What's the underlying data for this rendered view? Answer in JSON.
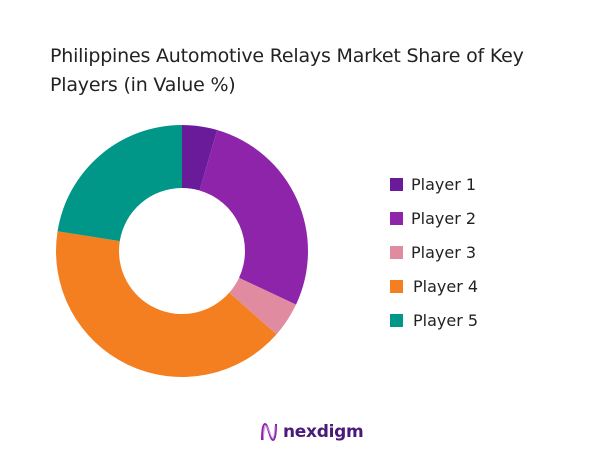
{
  "title": "Philippines Automotive Relays Market Share of Key Players (in Value %)",
  "logo": {
    "text": "nexdigm",
    "icon": "nexdigm-wave-logo-icon",
    "color": "#6a1b9a"
  },
  "chart_data": {
    "type": "pie",
    "variant": "donut",
    "title": "Philippines Automotive Relays Market Share of Key Players (in Value %)",
    "categories": [
      "Player 1",
      "Player 2",
      "Player 3",
      "Player 4",
      "Player 5"
    ],
    "values": [
      4.5,
      27.5,
      4.5,
      41,
      22.5
    ],
    "colors": [
      "#6a1b9a",
      "#8e24aa",
      "#e08ba0",
      "#f47f20",
      "#009688"
    ],
    "unit": "%",
    "legend_position": "right",
    "data_labels": false
  },
  "legend": {
    "items": [
      {
        "label": "Player 1",
        "color": "#6a1b9a"
      },
      {
        "label": "Player 2",
        "color": "#8e24aa"
      },
      {
        "label": "Player 3",
        "color": "#e08ba0"
      },
      {
        "label": "Player 4",
        "color": "#f47f20"
      },
      {
        "label": "Player 5",
        "color": "#009688"
      }
    ]
  }
}
